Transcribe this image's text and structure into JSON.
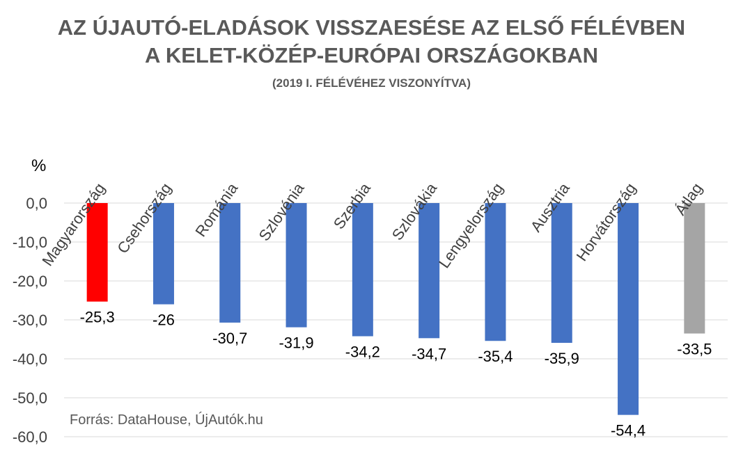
{
  "chart_data": {
    "type": "bar",
    "title": "AZ ÚJAUTÓ-ELADÁSOK VISSZAESÉSE AZ ELSŐ FÉLÉVBEN",
    "title_line2": "A KELET-KÖZÉP-EURÓPAI ORSZÁGOKBAN",
    "subtitle": "(2019 I. FÉLÉVÉHEZ VISZONYÍTVA)",
    "ylabel": "%",
    "ylim": [
      -60,
      0
    ],
    "yticks": [
      "0,0",
      "-10,0",
      "-20,0",
      "-30,0",
      "-40,0",
      "-50,0",
      "-60,0"
    ],
    "ytick_values": [
      0,
      -10,
      -20,
      -30,
      -40,
      -50,
      -60
    ],
    "grid": true,
    "categories": [
      "Magyarország",
      "Csehország",
      "Románia",
      "Szlovénia",
      "Szerbia",
      "Szlovákia",
      "Lengyelország",
      "Ausztria",
      "Horvátország",
      "Átlag"
    ],
    "values": [
      -25.3,
      -26,
      -30.7,
      -31.9,
      -34.2,
      -34.7,
      -35.4,
      -35.9,
      -54.4,
      -33.5
    ],
    "value_labels": [
      "-25,3",
      "-26",
      "-30,7",
      "-31,9",
      "-34,2",
      "-34,7",
      "-35,4",
      "-35,9",
      "-54,4",
      "-33,5"
    ],
    "colors": [
      "#ff0000",
      "#4472c4",
      "#4472c4",
      "#4472c4",
      "#4472c4",
      "#4472c4",
      "#4472c4",
      "#4472c4",
      "#4472c4",
      "#a5a5a5"
    ],
    "source": "Forrás: DataHouse, ÚjAutók.hu"
  }
}
